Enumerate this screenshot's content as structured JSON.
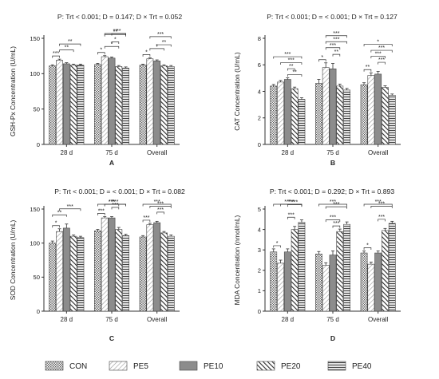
{
  "legend": {
    "items": [
      {
        "label": "CON",
        "pattern": "dots"
      },
      {
        "label": "PE5",
        "pattern": "light-diag"
      },
      {
        "label": "PE10",
        "pattern": "solid-gray"
      },
      {
        "label": "PE20",
        "pattern": "dark-diag"
      },
      {
        "label": "PE40",
        "pattern": "horiz"
      }
    ]
  },
  "colors": {
    "bar_stroke": "#444444",
    "solid_gray": "#8c8c8c",
    "text": "#222222"
  },
  "chart_data": [
    {
      "type": "bar",
      "panel": "A",
      "title": "P: Trt < 0.001; D = 0.147; D × Trt = 0.052",
      "ylabel": "GSH-Px Concentration (U/mL)",
      "ylim": [
        0,
        150
      ],
      "yticks": [
        0,
        50,
        100,
        150
      ],
      "categories": [
        "28 d",
        "75 d",
        "Overall"
      ],
      "series": [
        {
          "name": "CON",
          "values": [
            111,
            113,
            112
          ],
          "err": [
            1.5,
            1.5,
            1.5
          ]
        },
        {
          "name": "PE5",
          "values": [
            119,
            124,
            121
          ],
          "err": [
            1.5,
            1.5,
            1.5
          ]
        },
        {
          "name": "PE10",
          "values": [
            114,
            122,
            118
          ],
          "err": [
            1.5,
            1.5,
            1.5
          ]
        },
        {
          "name": "PE20",
          "values": [
            112,
            110,
            111
          ],
          "err": [
            1.5,
            1.5,
            1.5
          ]
        },
        {
          "name": "PE40",
          "values": [
            112,
            108,
            110
          ],
          "err": [
            1.5,
            1.5,
            1.5
          ]
        }
      ],
      "annotations": [
        {
          "group": 0,
          "from": 0,
          "to": 1,
          "label": "***"
        },
        {
          "group": 0,
          "from": 1,
          "to": 3,
          "label": "**"
        },
        {
          "group": 0,
          "from": 1,
          "to": 4,
          "label": "**"
        },
        {
          "group": 1,
          "from": 0,
          "to": 1,
          "label": "*"
        },
        {
          "group": 1,
          "from": 1,
          "to": 3,
          "label": "*"
        },
        {
          "group": 1,
          "from": 2,
          "to": 3,
          "label": "*"
        },
        {
          "group": 1,
          "from": 1,
          "to": 4,
          "label": "**"
        },
        {
          "group": 1,
          "from": 2,
          "to": 4,
          "label": "**"
        },
        {
          "group": 1,
          "from": 1,
          "to": 4,
          "label": "**"
        },
        {
          "group": 2,
          "from": 0,
          "to": 1,
          "label": "*"
        },
        {
          "group": 2,
          "from": 1,
          "to": 3,
          "label": "*"
        },
        {
          "group": 2,
          "from": 2,
          "to": 4,
          "label": "**"
        },
        {
          "group": 2,
          "from": 1,
          "to": 4,
          "label": "***"
        }
      ]
    },
    {
      "type": "bar",
      "panel": "B",
      "title": "P: Trt < 0.001; D = < 0.001; D × Trt = 0.127",
      "ylabel": "CAT Concentration (U/mL)",
      "ylim": [
        0,
        8
      ],
      "yticks": [
        0,
        2,
        4,
        6,
        8
      ],
      "categories": [
        "28 d",
        "75 d",
        "Overall"
      ],
      "series": [
        {
          "name": "CON",
          "values": [
            4.4,
            4.6,
            4.5
          ],
          "err": [
            0.12,
            0.3,
            0.15
          ]
        },
        {
          "name": "PE5",
          "values": [
            4.7,
            5.8,
            5.2
          ],
          "err": [
            0.12,
            0.35,
            0.2
          ]
        },
        {
          "name": "PE10",
          "values": [
            4.9,
            5.7,
            5.3
          ],
          "err": [
            0.12,
            0.4,
            0.2
          ]
        },
        {
          "name": "PE20",
          "values": [
            4.2,
            4.4,
            4.3
          ],
          "err": [
            0.12,
            0.15,
            0.12
          ]
        },
        {
          "name": "PE40",
          "values": [
            3.4,
            4.1,
            3.7
          ],
          "err": [
            0.12,
            0.12,
            0.1
          ]
        }
      ],
      "annotations": [
        {
          "group": 0,
          "from": 2,
          "to": 4,
          "label": "**"
        },
        {
          "group": 0,
          "from": 2,
          "to": 3,
          "label": "**"
        },
        {
          "group": 0,
          "from": 1,
          "to": 4,
          "label": "***"
        },
        {
          "group": 0,
          "from": 0,
          "to": 4,
          "label": "***"
        },
        {
          "group": 1,
          "from": 0,
          "to": 1,
          "label": "*"
        },
        {
          "group": 1,
          "from": 2,
          "to": 3,
          "label": "**"
        },
        {
          "group": 1,
          "from": 1,
          "to": 3,
          "label": "***"
        },
        {
          "group": 1,
          "from": 1,
          "to": 4,
          "label": "***"
        },
        {
          "group": 1,
          "from": 1,
          "to": 4,
          "label": "***"
        },
        {
          "group": 2,
          "from": 0,
          "to": 1,
          "label": "**"
        },
        {
          "group": 2,
          "from": 2,
          "to": 3,
          "label": "***"
        },
        {
          "group": 2,
          "from": 1,
          "to": 3,
          "label": "***"
        },
        {
          "group": 2,
          "from": 1,
          "to": 4,
          "label": "***"
        },
        {
          "group": 2,
          "from": 0,
          "to": 4,
          "label": "*"
        }
      ]
    },
    {
      "type": "bar",
      "panel": "C",
      "title": "P: Trt < 0.001; D = < 0.001; D × Trt = 0.082",
      "ylabel": "SOD Concentration (U/mL)",
      "ylim": [
        0,
        150
      ],
      "yticks": [
        0,
        50,
        100,
        150
      ],
      "categories": [
        "28 d",
        "75 d",
        "Overall"
      ],
      "series": [
        {
          "name": "CON",
          "values": [
            100,
            118,
            109
          ],
          "err": [
            3,
            2,
            2
          ]
        },
        {
          "name": "PE5",
          "values": [
            117,
            137,
            127
          ],
          "err": [
            4,
            2,
            2
          ]
        },
        {
          "name": "PE10",
          "values": [
            122,
            137,
            130
          ],
          "err": [
            6,
            2,
            2
          ]
        },
        {
          "name": "PE20",
          "values": [
            110,
            120,
            115
          ],
          "err": [
            2,
            3,
            2
          ]
        },
        {
          "name": "PE40",
          "values": [
            108,
            111,
            110
          ],
          "err": [
            2,
            2,
            2
          ]
        }
      ],
      "annotations": [
        {
          "group": 0,
          "from": 0,
          "to": 1,
          "label": "*"
        },
        {
          "group": 0,
          "from": 0,
          "to": 2,
          "label": "**"
        },
        {
          "group": 0,
          "from": 1,
          "to": 4,
          "label": "***"
        },
        {
          "group": 1,
          "from": 0,
          "to": 1,
          "label": "***"
        },
        {
          "group": 1,
          "from": 2,
          "to": 3,
          "label": "***"
        },
        {
          "group": 1,
          "from": 1,
          "to": 3,
          "label": "***"
        },
        {
          "group": 1,
          "from": 1,
          "to": 4,
          "label": "***"
        },
        {
          "group": 1,
          "from": 0,
          "to": 4,
          "label": "***"
        },
        {
          "group": 2,
          "from": 0,
          "to": 1,
          "label": "***"
        },
        {
          "group": 2,
          "from": 2,
          "to": 3,
          "label": "***"
        },
        {
          "group": 2,
          "from": 1,
          "to": 4,
          "label": "***"
        },
        {
          "group": 2,
          "from": 0,
          "to": 4,
          "label": "***"
        }
      ]
    },
    {
      "type": "bar",
      "panel": "D",
      "title": "P: Trt < 0.001; D = 0.292; D × Trt = 0.893",
      "ylabel": "MDA Concentration (nmol/mL)",
      "ylim": [
        0,
        5
      ],
      "yticks": [
        0,
        1,
        2,
        3,
        4,
        5
      ],
      "categories": [
        "28 d",
        "75 d",
        "Overall"
      ],
      "series": [
        {
          "name": "CON",
          "values": [
            2.9,
            2.8,
            2.85
          ],
          "err": [
            0.15,
            0.12,
            0.1
          ]
        },
        {
          "name": "PE5",
          "values": [
            2.35,
            2.25,
            2.3
          ],
          "err": [
            0.15,
            0.12,
            0.1
          ]
        },
        {
          "name": "PE10",
          "values": [
            2.9,
            2.75,
            2.85
          ],
          "err": [
            0.15,
            0.2,
            0.1
          ]
        },
        {
          "name": "PE20",
          "values": [
            4.0,
            3.9,
            3.95
          ],
          "err": [
            0.15,
            0.12,
            0.1
          ]
        },
        {
          "name": "PE40",
          "values": [
            4.35,
            4.25,
            4.3
          ],
          "err": [
            0.12,
            0.12,
            0.1
          ]
        }
      ],
      "annotations": [
        {
          "group": 0,
          "from": 0,
          "to": 1,
          "label": "*"
        },
        {
          "group": 0,
          "from": 2,
          "to": 3,
          "label": "***"
        },
        {
          "group": 0,
          "from": 2,
          "to": 4,
          "label": "***"
        },
        {
          "group": 0,
          "from": 1,
          "to": 4,
          "label": "***"
        },
        {
          "group": 0,
          "from": 0,
          "to": 4,
          "label": "***"
        },
        {
          "group": 1,
          "from": 2,
          "to": 3,
          "label": "***"
        },
        {
          "group": 1,
          "from": 1,
          "to": 3,
          "label": "***"
        },
        {
          "group": 1,
          "from": 1,
          "to": 4,
          "label": "***"
        },
        {
          "group": 1,
          "from": 0,
          "to": 4,
          "label": "***"
        },
        {
          "group": 2,
          "from": 0,
          "to": 1,
          "label": "*"
        },
        {
          "group": 2,
          "from": 2,
          "to": 3,
          "label": "***"
        },
        {
          "group": 2,
          "from": 1,
          "to": 4,
          "label": "***"
        },
        {
          "group": 2,
          "from": 0,
          "to": 4,
          "label": "***"
        }
      ]
    }
  ]
}
